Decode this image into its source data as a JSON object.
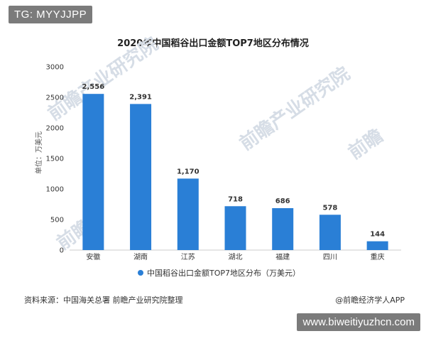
{
  "badges": {
    "top_left": "TG: MYYJJPP",
    "bottom_right": "www.biweitiyuzhcn.com"
  },
  "watermarks": [
    "前瞻产业研究院",
    "前瞻产业研究院",
    "前瞻产",
    "前瞻"
  ],
  "footer": {
    "source": "资料来源：中国海关总署 前瞻产业研究院整理",
    "credit": "@前瞻经济学人APP"
  },
  "colors": {
    "bar": "#2a7fd6",
    "legend_marker": "#2a7fd6",
    "axis": "#cccccc",
    "watermark": "#d6dde6"
  },
  "chart_data": {
    "type": "bar",
    "title": "2020年中国稻谷出口金额TOP7地区分布情况",
    "xlabel": "",
    "ylabel": "单位：万美元",
    "categories": [
      "安徽",
      "湖南",
      "江苏",
      "湖北",
      "福建",
      "四川",
      "重庆"
    ],
    "series": [
      {
        "name": "中国稻谷出口金额TOP7地区分布（万美元）",
        "values": [
          2556,
          2391,
          1170,
          718,
          686,
          578,
          144
        ],
        "value_labels": [
          "2,556",
          "2,391",
          "1,170",
          "718",
          "686",
          "578",
          "144"
        ]
      }
    ],
    "yticks": [
      0,
      500,
      1000,
      1500,
      2000,
      2500,
      3000
    ],
    "ylim": [
      0,
      3000
    ],
    "grid": false,
    "legend_position": "bottom"
  }
}
